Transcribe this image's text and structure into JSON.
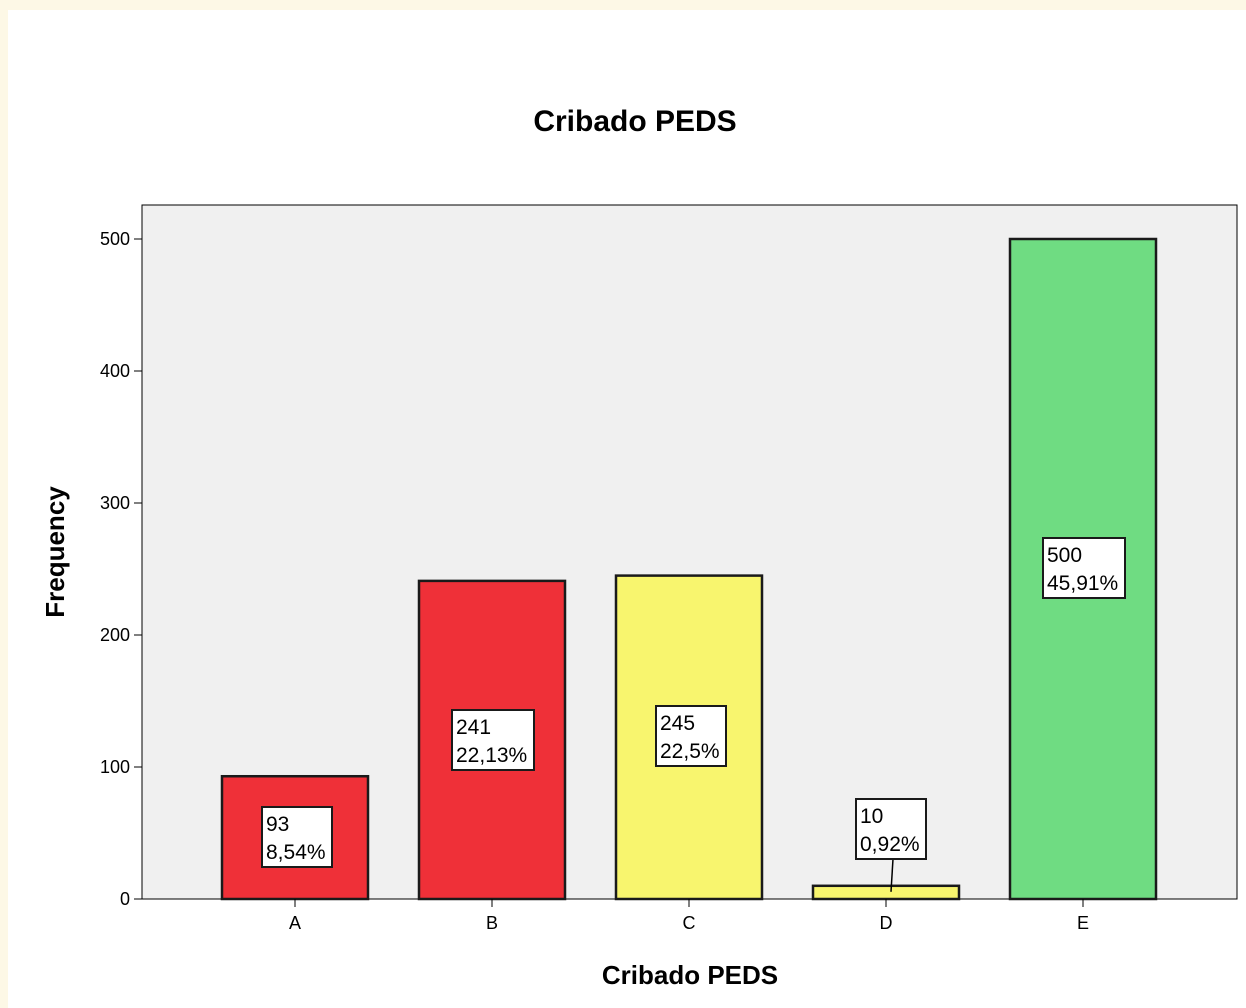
{
  "chart_data": {
    "type": "bar",
    "title": "Cribado PEDS",
    "xlabel": "Cribado PEDS",
    "ylabel": "Frequency",
    "categories": [
      "A",
      "B",
      "C",
      "D",
      "E"
    ],
    "values": [
      93,
      241,
      245,
      10,
      500
    ],
    "percent_labels": [
      "8,54%",
      "22,13%",
      "22,5%",
      "0,92%",
      "45,91%"
    ],
    "bar_colors": [
      "#ef3038",
      "#ef3038",
      "#f8f56e",
      "#f8f56e",
      "#6fdc82"
    ],
    "ylim": [
      0,
      527
    ],
    "yticks": [
      0,
      100,
      200,
      300,
      400,
      500
    ],
    "grid": false,
    "legend": "none",
    "plot_background": "#f0f0f0"
  }
}
